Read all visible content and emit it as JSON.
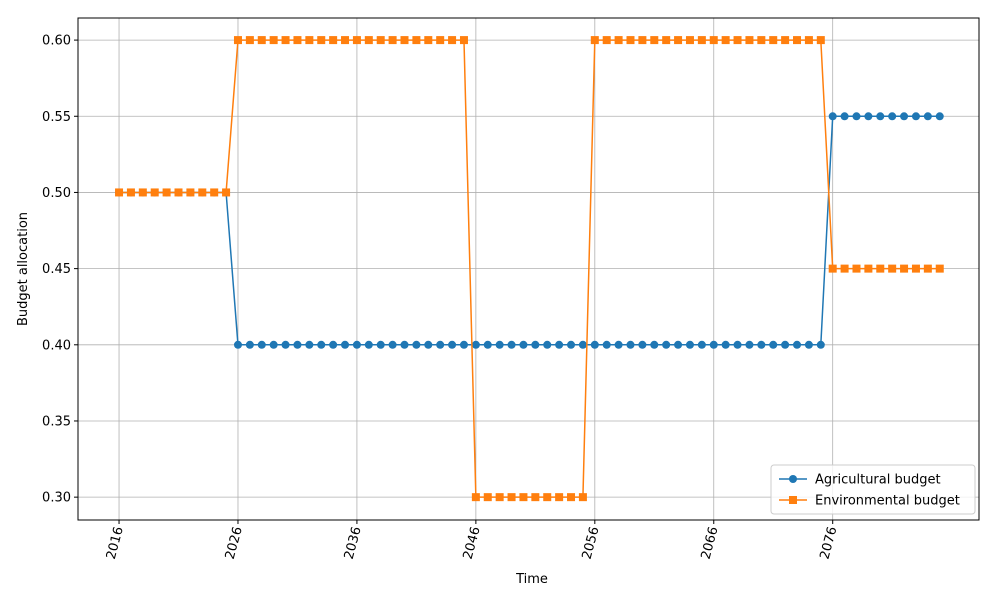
{
  "chart_data": {
    "type": "line",
    "xlabel": "Time",
    "ylabel": "Budget allocation",
    "x": [
      2016,
      2017,
      2018,
      2019,
      2020,
      2021,
      2022,
      2023,
      2024,
      2025,
      2026,
      2027,
      2028,
      2029,
      2030,
      2031,
      2032,
      2033,
      2034,
      2035,
      2036,
      2037,
      2038,
      2039,
      2040,
      2041,
      2042,
      2043,
      2044,
      2045,
      2046,
      2047,
      2048,
      2049,
      2050,
      2051,
      2052,
      2053,
      2054,
      2055,
      2056,
      2057,
      2058,
      2059,
      2060,
      2061,
      2062,
      2063,
      2064,
      2065,
      2066,
      2067,
      2068,
      2069,
      2070,
      2071,
      2072,
      2073,
      2074,
      2075,
      2076,
      2077,
      2078,
      2079,
      2080,
      2081,
      2082,
      2083,
      2084,
      2085
    ],
    "series": [
      {
        "name": "Agricultural budget",
        "color": "#1f77b4",
        "marker": "circle",
        "values": [
          0.5,
          0.5,
          0.5,
          0.5,
          0.5,
          0.5,
          0.5,
          0.5,
          0.5,
          0.5,
          0.4,
          0.4,
          0.4,
          0.4,
          0.4,
          0.4,
          0.4,
          0.4,
          0.4,
          0.4,
          0.4,
          0.4,
          0.4,
          0.4,
          0.4,
          0.4,
          0.4,
          0.4,
          0.4,
          0.4,
          0.4,
          0.4,
          0.4,
          0.4,
          0.4,
          0.4,
          0.4,
          0.4,
          0.4,
          0.4,
          0.4,
          0.4,
          0.4,
          0.4,
          0.4,
          0.4,
          0.4,
          0.4,
          0.4,
          0.4,
          0.4,
          0.4,
          0.4,
          0.4,
          0.4,
          0.4,
          0.4,
          0.4,
          0.4,
          0.4,
          0.55,
          0.55,
          0.55,
          0.55,
          0.55,
          0.55,
          0.55,
          0.55,
          0.55,
          0.55
        ]
      },
      {
        "name": "Environmental budget",
        "color": "#ff7f0e",
        "marker": "square",
        "values": [
          0.5,
          0.5,
          0.5,
          0.5,
          0.5,
          0.5,
          0.5,
          0.5,
          0.5,
          0.5,
          0.6,
          0.6,
          0.6,
          0.6,
          0.6,
          0.6,
          0.6,
          0.6,
          0.6,
          0.6,
          0.6,
          0.6,
          0.6,
          0.6,
          0.6,
          0.6,
          0.6,
          0.6,
          0.6,
          0.6,
          0.3,
          0.3,
          0.3,
          0.3,
          0.3,
          0.3,
          0.3,
          0.3,
          0.3,
          0.3,
          0.6,
          0.6,
          0.6,
          0.6,
          0.6,
          0.6,
          0.6,
          0.6,
          0.6,
          0.6,
          0.6,
          0.6,
          0.6,
          0.6,
          0.6,
          0.6,
          0.6,
          0.6,
          0.6,
          0.6,
          0.45,
          0.45,
          0.45,
          0.45,
          0.45,
          0.45,
          0.45,
          0.45,
          0.45,
          0.45
        ]
      }
    ],
    "xlim": [
      2012.55,
      2088.3
    ],
    "ylim": [
      0.285,
      0.6145
    ],
    "xticks": [
      2016,
      2026,
      2036,
      2046,
      2056,
      2066,
      2076
    ],
    "yticks": [
      {
        "value": 0.3,
        "label": "0.30"
      },
      {
        "value": 0.35,
        "label": "0.35"
      },
      {
        "value": 0.4,
        "label": "0.40"
      },
      {
        "value": 0.45,
        "label": "0.45"
      },
      {
        "value": 0.5,
        "label": "0.50"
      },
      {
        "value": 0.55,
        "label": "0.55"
      },
      {
        "value": 0.6,
        "label": "0.60"
      }
    ],
    "grid": true,
    "legend": "lower right"
  }
}
